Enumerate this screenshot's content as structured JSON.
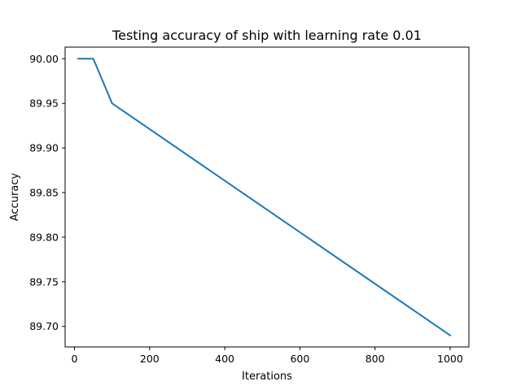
{
  "chart_data": {
    "type": "line",
    "title": "Testing accuracy of ship with learning rate 0.01",
    "xlabel": "Iterations",
    "ylabel": "Accuracy",
    "xlim": [
      -25,
      1050
    ],
    "ylim": [
      89.677,
      90.013
    ],
    "x_ticks": [
      0,
      200,
      400,
      600,
      800,
      1000
    ],
    "x_tick_labels": [
      "0",
      "200",
      "400",
      "600",
      "800",
      "1000"
    ],
    "y_ticks": [
      89.7,
      89.75,
      89.8,
      89.85,
      89.9,
      89.95,
      90.0
    ],
    "y_tick_labels": [
      "89.70",
      "89.75",
      "89.80",
      "89.85",
      "89.90",
      "89.95",
      "90.00"
    ],
    "grid": false,
    "series": [
      {
        "name": "ship",
        "color": "#1f77b4",
        "x": [
          10,
          50,
          100,
          1000
        ],
        "y": [
          90.0,
          90.0,
          89.95,
          89.69
        ]
      }
    ]
  }
}
